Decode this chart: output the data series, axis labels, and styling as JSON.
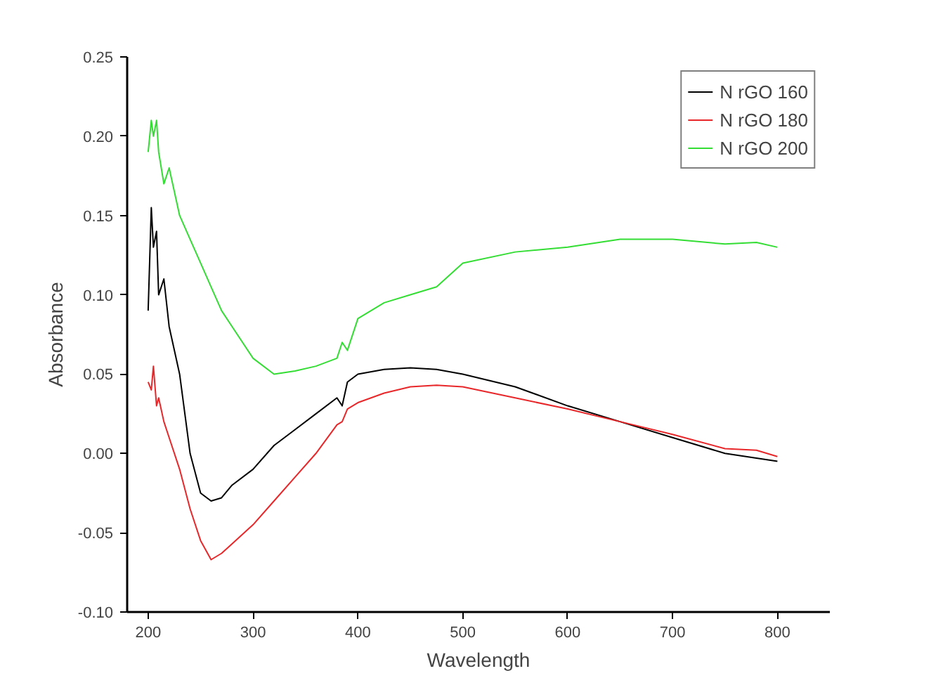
{
  "chart_data": {
    "type": "line",
    "xlabel": "Wavelength",
    "ylabel": "Absorbance",
    "xlim": [
      180,
      850
    ],
    "ylim": [
      -0.1,
      0.25
    ],
    "xticks": [
      200,
      300,
      400,
      500,
      600,
      700,
      800
    ],
    "yticks": [
      {
        "value": -0.1,
        "label": "-0.10"
      },
      {
        "value": -0.05,
        "label": "-0.05"
      },
      {
        "value": 0,
        "label": "0.00"
      },
      {
        "value": 0.05,
        "label": "0.05"
      },
      {
        "value": 0.1,
        "label": "0.10"
      },
      {
        "value": 0.15,
        "label": "0.15"
      },
      {
        "value": 0.2,
        "label": "0.20"
      },
      {
        "value": 0.25,
        "label": "0.25"
      }
    ],
    "grid": false,
    "legend": "top right",
    "line_style": "solid",
    "marker": "none",
    "x": [
      200,
      203,
      205,
      208,
      210,
      215,
      220,
      230,
      240,
      250,
      260,
      270,
      280,
      300,
      320,
      340,
      360,
      380,
      385,
      390,
      400,
      425,
      450,
      475,
      500,
      550,
      600,
      650,
      700,
      750,
      780,
      800
    ],
    "series": [
      {
        "name": "N rGO 160",
        "color": "#000000",
        "values": [
          0.09,
          0.155,
          0.13,
          0.14,
          0.1,
          0.11,
          0.08,
          0.05,
          0.0,
          -0.025,
          -0.03,
          -0.028,
          -0.02,
          -0.01,
          0.005,
          0.015,
          0.025,
          0.035,
          0.03,
          0.045,
          0.05,
          0.053,
          0.054,
          0.053,
          0.05,
          0.042,
          0.03,
          0.02,
          0.01,
          0.0,
          -0.003,
          -0.005
        ]
      },
      {
        "name": "N rGO 180",
        "color": "#e8272a",
        "values": [
          0.045,
          0.04,
          0.055,
          0.03,
          0.035,
          0.02,
          0.01,
          -0.01,
          -0.035,
          -0.055,
          -0.067,
          -0.063,
          -0.057,
          -0.045,
          -0.03,
          -0.015,
          0.0,
          0.018,
          0.02,
          0.028,
          0.032,
          0.038,
          0.042,
          0.043,
          0.042,
          0.035,
          0.028,
          0.02,
          0.012,
          0.003,
          0.002,
          -0.002
        ]
      },
      {
        "name": "N rGO 200",
        "color": "#33dd33",
        "values": [
          0.19,
          0.21,
          0.2,
          0.21,
          0.19,
          0.17,
          0.18,
          0.15,
          0.135,
          0.12,
          0.105,
          0.09,
          0.08,
          0.06,
          0.05,
          0.052,
          0.055,
          0.06,
          0.07,
          0.065,
          0.085,
          0.095,
          0.1,
          0.105,
          0.12,
          0.127,
          0.13,
          0.135,
          0.135,
          0.132,
          0.133,
          0.13
        ]
      }
    ]
  }
}
